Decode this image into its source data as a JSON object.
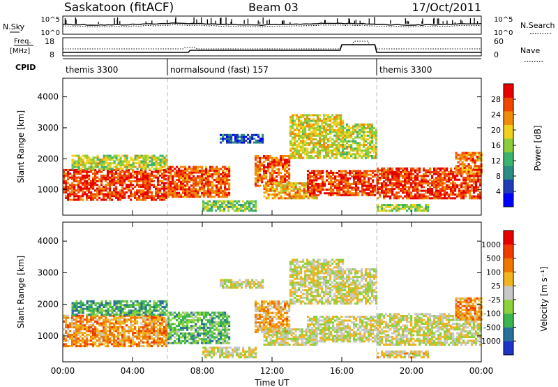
{
  "header": {
    "title": "Saskatoon (fitACF)",
    "beam": "Beam 03",
    "date": "17/Oct/2011"
  },
  "nsky_panel": {
    "left_label": "N.Sky",
    "left_ticks": [
      "10^5",
      "10^0"
    ],
    "right_ticks": [
      "10^5",
      "10^0"
    ],
    "right_label": "N.Search"
  },
  "freq_panel": {
    "left_label_1": "Freq.",
    "left_label_2": "[MHz]",
    "left_ticks": [
      "18",
      "8"
    ],
    "right_ticks": [
      "60",
      "0"
    ],
    "right_label": "Nave"
  },
  "cpid": {
    "label": "CPID",
    "segments": [
      {
        "label": "themis 3300",
        "start_hour": 0,
        "end_hour": 6
      },
      {
        "label": "normalsound (fast) 157",
        "start_hour": 6,
        "end_hour": 18
      },
      {
        "label": "themis 3300",
        "start_hour": 18,
        "end_hour": 24
      }
    ]
  },
  "chart_data": [
    {
      "type": "heatmap",
      "name": "Power panel",
      "ylabel": "Slant Range [km]",
      "ylim": [
        180,
        4600
      ],
      "yticks": [
        "1000",
        "2000",
        "3000",
        "4000"
      ],
      "xlim_hours": [
        0,
        24
      ],
      "colorbar": {
        "label": "Power [dB]",
        "range": [
          0,
          32
        ],
        "ticks": [
          "4",
          "8",
          "12",
          "16",
          "20",
          "24",
          "28"
        ],
        "colors": [
          "#0000ff",
          "#1e3cb4",
          "#2a8c82",
          "#3cb46e",
          "#8ccd3c",
          "#f0d21e",
          "#f08c0a",
          "#f04600",
          "#e60000"
        ]
      },
      "echo_regions": [
        {
          "t0": 0.0,
          "t1": 6.0,
          "r0": 650,
          "r1": 1650,
          "level": 0.9
        },
        {
          "t0": 0.5,
          "t1": 6.0,
          "r0": 1650,
          "r1": 2100,
          "level": 0.55
        },
        {
          "t0": 6.0,
          "t1": 9.5,
          "r0": 750,
          "r1": 1750,
          "level": 0.85
        },
        {
          "t0": 8.0,
          "t1": 11.0,
          "r0": 300,
          "r1": 650,
          "level": 0.45
        },
        {
          "t0": 9.0,
          "t1": 11.5,
          "r0": 2500,
          "r1": 2800,
          "level": 0.15
        },
        {
          "t0": 11.0,
          "t1": 13.0,
          "r0": 1100,
          "r1": 2100,
          "level": 0.85
        },
        {
          "t0": 11.5,
          "t1": 14.5,
          "r0": 700,
          "r1": 1200,
          "level": 0.7
        },
        {
          "t0": 13.0,
          "t1": 16.0,
          "r0": 2000,
          "r1": 3400,
          "level": 0.6
        },
        {
          "t0": 14.0,
          "t1": 18.0,
          "r0": 800,
          "r1": 1600,
          "level": 0.9
        },
        {
          "t0": 16.0,
          "t1": 18.0,
          "r0": 2000,
          "r1": 3100,
          "level": 0.55
        },
        {
          "t0": 18.0,
          "t1": 24.0,
          "r0": 700,
          "r1": 1700,
          "level": 0.9
        },
        {
          "t0": 22.5,
          "t1": 24.0,
          "r0": 1500,
          "r1": 2200,
          "level": 0.8
        },
        {
          "t0": 18.0,
          "t1": 21.0,
          "r0": 300,
          "r1": 500,
          "level": 0.5
        }
      ]
    },
    {
      "type": "heatmap",
      "name": "Velocity panel",
      "ylabel": "Slant Range [km]",
      "ylim": [
        180,
        4600
      ],
      "yticks": [
        "1000",
        "2000",
        "3000",
        "4000"
      ],
      "xlim_hours": [
        0,
        24
      ],
      "xticks": [
        "00:00",
        "04:00",
        "08:00",
        "12:00",
        "16:00",
        "20:00",
        "00:00"
      ],
      "xlabel": "Time UT",
      "colorbar": {
        "label": "Velocity [m s⁻¹]",
        "ticks": [
          "1000",
          "500",
          "100",
          "25",
          "-25",
          "-100",
          "-500",
          "-1000"
        ],
        "colors": [
          "#1e32c8",
          "#2a6e9a",
          "#3cb450",
          "#8cd23c",
          "#c8c8c8",
          "#f0b41e",
          "#f07800",
          "#f03c00",
          "#e60000"
        ]
      },
      "echo_regions": [
        {
          "t0": 0.0,
          "t1": 6.0,
          "r0": 650,
          "r1": 1650,
          "level": 0.7
        },
        {
          "t0": 0.5,
          "t1": 6.0,
          "r0": 1650,
          "r1": 2100,
          "level": 0.25
        },
        {
          "t0": 6.0,
          "t1": 9.5,
          "r0": 750,
          "r1": 1750,
          "level": 0.3
        },
        {
          "t0": 8.0,
          "t1": 11.0,
          "r0": 300,
          "r1": 650,
          "level": 0.5
        },
        {
          "t0": 9.0,
          "t1": 11.5,
          "r0": 2500,
          "r1": 2800,
          "level": 0.5
        },
        {
          "t0": 11.0,
          "t1": 13.0,
          "r0": 1100,
          "r1": 2100,
          "level": 0.65
        },
        {
          "t0": 11.5,
          "t1": 14.5,
          "r0": 700,
          "r1": 1200,
          "level": 0.5
        },
        {
          "t0": 13.0,
          "t1": 16.0,
          "r0": 2000,
          "r1": 3400,
          "level": 0.5
        },
        {
          "t0": 14.0,
          "t1": 18.0,
          "r0": 800,
          "r1": 1600,
          "level": 0.5
        },
        {
          "t0": 16.0,
          "t1": 18.0,
          "r0": 2000,
          "r1": 3100,
          "level": 0.5
        },
        {
          "t0": 18.0,
          "t1": 24.0,
          "r0": 700,
          "r1": 1700,
          "level": 0.5
        },
        {
          "t0": 22.5,
          "t1": 24.0,
          "r0": 1500,
          "r1": 2200,
          "level": 0.7
        },
        {
          "t0": 18.0,
          "t1": 21.0,
          "r0": 300,
          "r1": 500,
          "level": 0.55
        }
      ]
    }
  ]
}
